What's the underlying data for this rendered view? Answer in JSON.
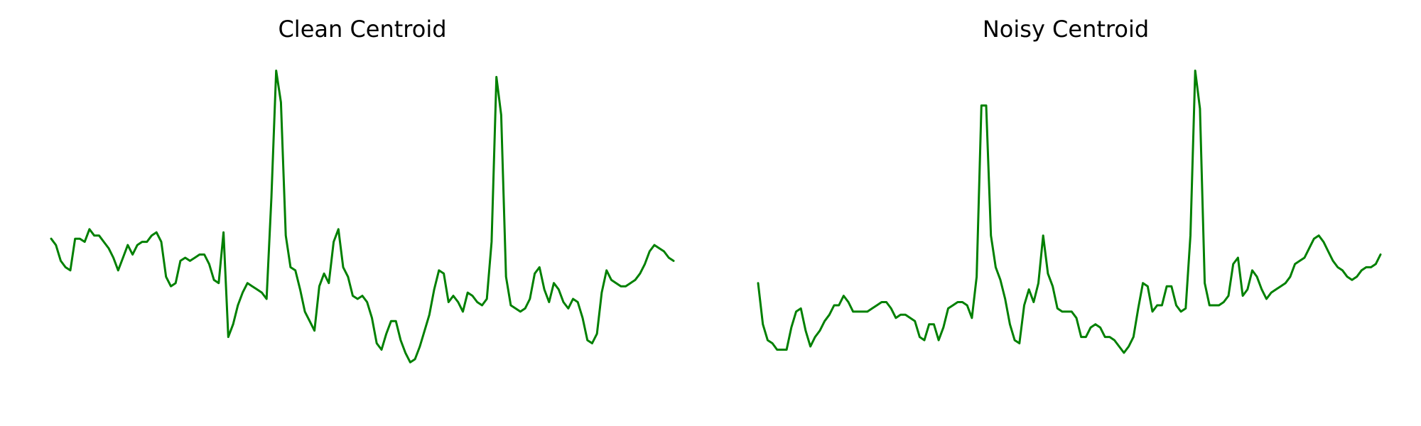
{
  "chart_data": [
    {
      "type": "line",
      "title": "Clean Centroid",
      "color": "#008000",
      "ylim": [
        -4,
        6.3
      ],
      "axes_visible": false,
      "grid": false,
      "y": [
        0.9,
        0.7,
        0.2,
        0.0,
        -0.1,
        0.9,
        0.9,
        0.8,
        1.2,
        1.0,
        1.0,
        0.8,
        0.6,
        0.3,
        -0.1,
        0.3,
        0.7,
        0.4,
        0.7,
        0.8,
        0.8,
        1.0,
        1.1,
        0.8,
        -0.3,
        -0.6,
        -0.5,
        0.2,
        0.3,
        0.2,
        0.3,
        0.4,
        0.4,
        0.1,
        -0.4,
        -0.5,
        1.1,
        -2.2,
        -1.8,
        -1.2,
        -0.8,
        -0.5,
        -0.6,
        -0.7,
        -0.8,
        -1.0,
        2.2,
        6.2,
        5.2,
        1.0,
        0.0,
        -0.1,
        -0.7,
        -1.4,
        -1.7,
        -2.0,
        -0.6,
        -0.2,
        -0.5,
        0.8,
        1.2,
        0.0,
        -0.3,
        -0.9,
        -1.0,
        -0.9,
        -1.1,
        -1.6,
        -2.4,
        -2.6,
        -2.1,
        -1.7,
        -1.7,
        -2.3,
        -2.7,
        -3.0,
        -2.9,
        -2.5,
        -2.0,
        -1.5,
        -0.7,
        -0.1,
        -0.2,
        -1.1,
        -0.9,
        -1.1,
        -1.4,
        -0.8,
        -0.9,
        -1.1,
        -1.2,
        -1.0,
        0.8,
        6.0,
        4.8,
        -0.3,
        -1.2,
        -1.3,
        -1.4,
        -1.3,
        -1.0,
        -0.2,
        0.0,
        -0.7,
        -1.1,
        -0.5,
        -0.7,
        -1.1,
        -1.3,
        -1.0,
        -1.1,
        -1.6,
        -2.3,
        -2.4,
        -2.1,
        -0.8,
        -0.1,
        -0.4,
        -0.5,
        -0.6,
        -0.6,
        -0.5,
        -0.4,
        -0.2,
        0.1,
        0.5,
        0.7,
        0.6,
        0.5,
        0.3,
        0.2
      ]
    },
    {
      "type": "line",
      "title": "Noisy Centroid",
      "color": "#008000",
      "ylim": [
        -4,
        6.3
      ],
      "axes_visible": false,
      "grid": false,
      "y": [
        -0.5,
        -1.8,
        -2.3,
        -2.4,
        -2.6,
        -2.6,
        -2.6,
        -1.9,
        -1.4,
        -1.3,
        -2.0,
        -2.5,
        -2.2,
        -2.0,
        -1.7,
        -1.5,
        -1.2,
        -1.2,
        -0.9,
        -1.1,
        -1.4,
        -1.4,
        -1.4,
        -1.4,
        -1.3,
        -1.2,
        -1.1,
        -1.1,
        -1.3,
        -1.6,
        -1.5,
        -1.5,
        -1.6,
        -1.7,
        -2.2,
        -2.3,
        -1.8,
        -1.8,
        -2.3,
        -1.9,
        -1.3,
        -1.2,
        -1.1,
        -1.1,
        -1.2,
        -1.6,
        -0.3,
        5.1,
        5.1,
        1.0,
        0.0,
        -0.4,
        -1.0,
        -1.8,
        -2.3,
        -2.4,
        -1.2,
        -0.7,
        -1.1,
        -0.5,
        1.0,
        -0.2,
        -0.6,
        -1.3,
        -1.4,
        -1.4,
        -1.4,
        -1.6,
        -2.2,
        -2.2,
        -1.9,
        -1.8,
        -1.9,
        -2.2,
        -2.2,
        -2.3,
        -2.5,
        -2.7,
        -2.5,
        -2.2,
        -1.3,
        -0.5,
        -0.6,
        -1.4,
        -1.2,
        -1.2,
        -0.6,
        -0.6,
        -1.2,
        -1.4,
        -1.3,
        1.0,
        6.2,
        5.0,
        -0.5,
        -1.2,
        -1.2,
        -1.2,
        -1.1,
        -0.9,
        0.1,
        0.3,
        -0.9,
        -0.7,
        -0.1,
        -0.3,
        -0.7,
        -1.0,
        -0.8,
        -0.7,
        -0.6,
        -0.5,
        -0.3,
        0.1,
        0.2,
        0.3,
        0.6,
        0.9,
        1.0,
        0.8,
        0.5,
        0.2,
        0.0,
        -0.1,
        -0.3,
        -0.4,
        -0.3,
        -0.1,
        0.0,
        0.0,
        0.1,
        0.4
      ]
    }
  ]
}
